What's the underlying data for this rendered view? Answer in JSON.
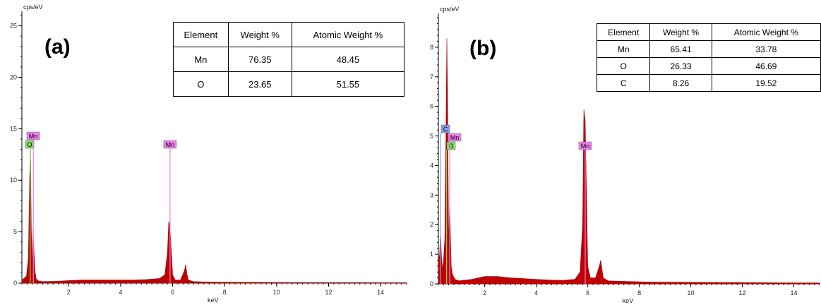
{
  "chart_data": [
    {
      "type": "line",
      "panel_label": "(a)",
      "ylabel": "cps/eV",
      "xlabel": "keV",
      "xlim": [
        0.2,
        15
      ],
      "ylim": [
        0,
        26
      ],
      "xticks": [
        2,
        4,
        6,
        8,
        10,
        12,
        14
      ],
      "yticks": [
        0,
        5,
        10,
        15,
        20,
        25
      ],
      "series": [
        {
          "x": [
            0.2,
            0.3,
            0.38,
            0.45,
            0.5,
            0.53,
            0.56,
            0.6,
            0.63,
            0.66,
            0.7,
            0.75,
            0.85,
            1.0,
            1.5,
            2.0,
            2.5,
            3.0,
            3.5,
            4.0,
            4.5,
            5.0,
            5.5,
            5.7,
            5.8,
            5.85,
            5.9,
            5.95,
            6.0,
            6.1,
            6.3,
            6.45,
            6.5,
            6.55,
            6.6,
            6.8,
            7.5,
            8.5,
            10,
            12,
            14,
            15
          ],
          "y": [
            0.3,
            0.5,
            0.7,
            2.5,
            10.5,
            13,
            5.5,
            1.2,
            5.5,
            3.5,
            1.2,
            0.4,
            0.2,
            0.15,
            0.18,
            0.25,
            0.3,
            0.3,
            0.3,
            0.3,
            0.3,
            0.35,
            0.45,
            0.8,
            3,
            6,
            5.5,
            3,
            0.8,
            0.3,
            0.3,
            1.2,
            1.8,
            0.9,
            0.3,
            0.15,
            0.1,
            0.08,
            0.06,
            0.05,
            0.04,
            0.04
          ]
        }
      ],
      "markers": [
        {
          "label": "O",
          "x": 0.52,
          "color": "#7ddf5f"
        },
        {
          "label": "Mn",
          "x": 0.64,
          "color": "#ee82ee"
        },
        {
          "label": "Mn",
          "x": 5.9,
          "color": "#ee82ee"
        }
      ],
      "table": {
        "headers": [
          "Element",
          "Weight %",
          "Atomic Weight %"
        ],
        "rows": [
          [
            "Mn",
            "76.35",
            "48.45"
          ],
          [
            "O",
            "23.65",
            "51.55"
          ]
        ]
      }
    },
    {
      "type": "line",
      "panel_label": "(b)",
      "ylabel": "cps/eV",
      "xlabel": "keV",
      "xlim": [
        0.2,
        15
      ],
      "ylim": [
        0,
        9
      ],
      "xticks": [
        2,
        4,
        6,
        8,
        10,
        12,
        14
      ],
      "yticks": [
        0,
        1,
        2,
        3,
        4,
        5,
        6,
        7,
        8
      ],
      "series": [
        {
          "x": [
            0.2,
            0.25,
            0.28,
            0.32,
            0.36,
            0.4,
            0.45,
            0.5,
            0.53,
            0.56,
            0.6,
            0.63,
            0.66,
            0.7,
            0.75,
            0.85,
            1.0,
            1.5,
            2.0,
            2.5,
            3.0,
            3.5,
            4.0,
            4.5,
            5.0,
            5.5,
            5.7,
            5.8,
            5.85,
            5.9,
            5.95,
            6.0,
            6.1,
            6.3,
            6.45,
            6.5,
            6.55,
            6.6,
            6.8,
            7.5,
            8.5,
            10,
            12,
            14,
            15
          ],
          "y": [
            0.8,
            1.0,
            1.8,
            0.9,
            0.5,
            0.8,
            1.5,
            5.5,
            8.3,
            6.0,
            1.2,
            2.6,
            2.0,
            0.6,
            0.3,
            0.15,
            0.1,
            0.15,
            0.25,
            0.25,
            0.2,
            0.18,
            0.15,
            0.13,
            0.12,
            0.15,
            0.4,
            2.0,
            5.9,
            5.5,
            3.0,
            0.6,
            0.2,
            0.2,
            0.6,
            0.8,
            0.5,
            0.2,
            0.1,
            0.08,
            0.06,
            0.05,
            0.04,
            0.03,
            0.03
          ]
        }
      ],
      "markers": [
        {
          "label": "C",
          "x": 0.28,
          "color": "#8a9df0"
        },
        {
          "label": "O",
          "x": 0.52,
          "color": "#7ddf5f"
        },
        {
          "label": "Mn",
          "x": 0.64,
          "color": "#ee82ee"
        },
        {
          "label": "Mn",
          "x": 5.9,
          "color": "#ee82ee"
        }
      ],
      "table": {
        "headers": [
          "Element",
          "Weight %",
          "Atomic Weight %"
        ],
        "rows": [
          [
            "Mn",
            "65.41",
            "33.78"
          ],
          [
            "O",
            "26.33",
            "46.69"
          ],
          [
            "C",
            "8.26",
            "19.52"
          ]
        ]
      }
    }
  ]
}
